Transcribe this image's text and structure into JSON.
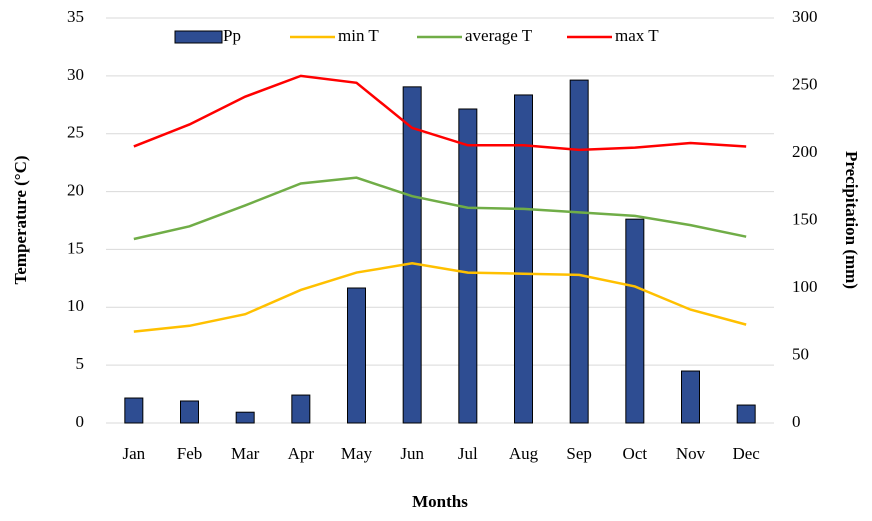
{
  "chart_data": {
    "type": "bar",
    "x_label": "Months",
    "y_label": "Temperature (°C)",
    "y2_label": "Precipitation  (mm)",
    "categories": [
      "Jan",
      "Feb",
      "Mar",
      "Apr",
      "May",
      "Jun",
      "Jul",
      "Aug",
      "Sep",
      "Oct",
      "Nov",
      "Dec"
    ],
    "series": [
      {
        "name": "Pp",
        "type": "bar",
        "axis": "y2",
        "color": "#2e4d92",
        "values": [
          18.5,
          16.3,
          8,
          20.7,
          100,
          249,
          232.6,
          243,
          254,
          151,
          38.5,
          13.3
        ]
      },
      {
        "name": "min T",
        "type": "line",
        "color": "#ffc000",
        "values": [
          7.9,
          8.4,
          9.4,
          11.5,
          13.0,
          13.8,
          13.0,
          12.9,
          12.8,
          11.8,
          9.8,
          8.5
        ]
      },
      {
        "name": "average T",
        "type": "line",
        "color": "#70ad47",
        "values": [
          15.9,
          17.0,
          18.8,
          20.7,
          21.2,
          19.6,
          18.6,
          18.5,
          18.2,
          17.9,
          17.1,
          16.1
        ]
      },
      {
        "name": "max T",
        "type": "line",
        "color": "#ff0000",
        "values": [
          23.9,
          25.8,
          28.2,
          30.0,
          29.4,
          25.5,
          24.0,
          24.0,
          23.6,
          23.8,
          24.2,
          23.9
        ]
      }
    ],
    "ylim": [
      0,
      35
    ],
    "yticks": [
      0,
      5,
      10,
      15,
      20,
      25,
      30,
      35
    ],
    "y2lim": [
      0,
      300
    ],
    "y2ticks": [
      0,
      50,
      100,
      150,
      200,
      250,
      300
    ],
    "grid": true,
    "legend": "top"
  }
}
